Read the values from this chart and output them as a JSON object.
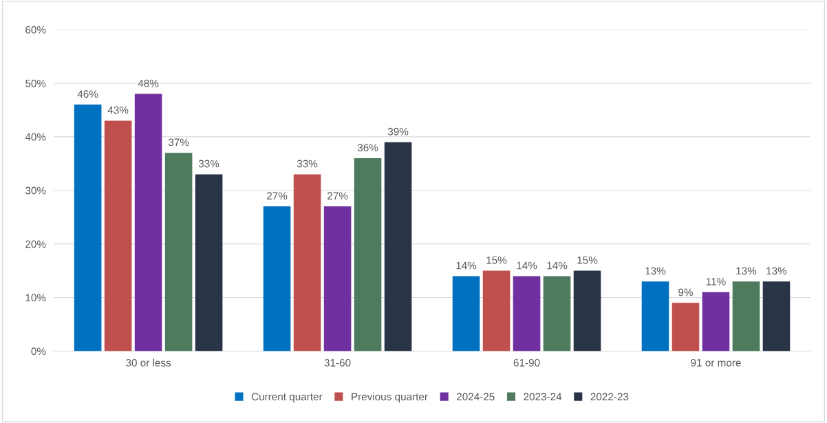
{
  "chart_data": {
    "type": "bar",
    "categories": [
      "30 or less",
      "31-60",
      "61-90",
      "91 or more"
    ],
    "series": [
      {
        "name": "Current quarter",
        "color": "#0070c0",
        "values": [
          46,
          27,
          14,
          13
        ],
        "value_labels": [
          "46%",
          "27%",
          "14%",
          "13%"
        ]
      },
      {
        "name": "Previous quarter",
        "color": "#c0504d",
        "values": [
          43,
          33,
          15,
          9
        ],
        "value_labels": [
          "43%",
          "33%",
          "15%",
          "9%"
        ]
      },
      {
        "name": "2024-25",
        "color": "#7030a0",
        "values": [
          48,
          27,
          14,
          11
        ],
        "value_labels": [
          "48%",
          "27%",
          "14%",
          "11%"
        ]
      },
      {
        "name": "2023-24",
        "color": "#4e7a5e",
        "values": [
          37,
          36,
          14,
          13
        ],
        "value_labels": [
          "37%",
          "36%",
          "14%",
          "13%"
        ]
      },
      {
        "name": "2022-23",
        "color": "#2a3447",
        "values": [
          33,
          39,
          15,
          13
        ],
        "value_labels": [
          "33%",
          "39%",
          "15%",
          "13%"
        ]
      }
    ],
    "ylim": [
      0,
      60
    ],
    "yticks": [
      {
        "value": 0,
        "label": "0%"
      },
      {
        "value": 10,
        "label": "10%"
      },
      {
        "value": 20,
        "label": "20%"
      },
      {
        "value": 30,
        "label": "30%"
      },
      {
        "value": 40,
        "label": "40%"
      },
      {
        "value": 50,
        "label": "50%"
      },
      {
        "value": 60,
        "label": "60%"
      }
    ],
    "grid": "y",
    "legend": "bottom"
  }
}
